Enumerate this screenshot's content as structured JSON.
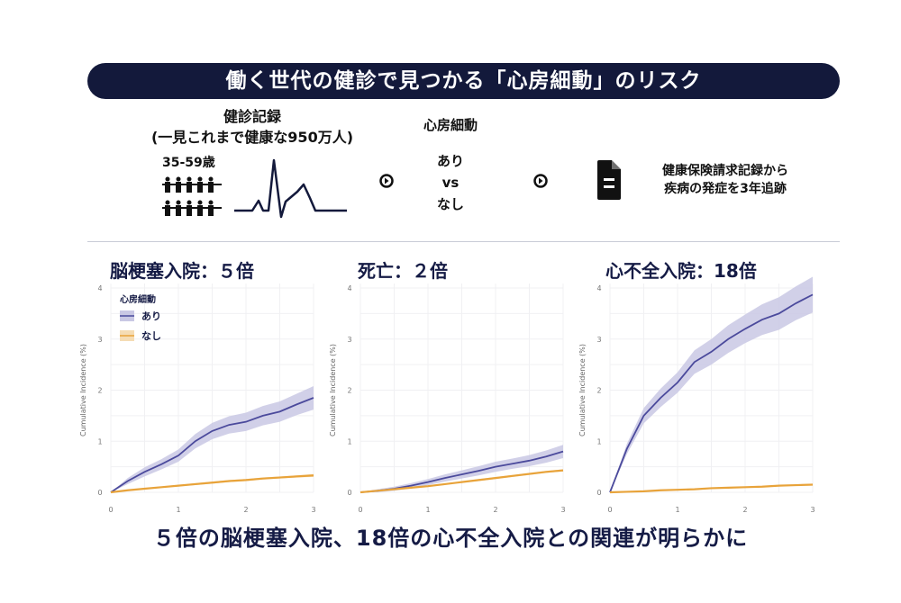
{
  "header": {
    "title": "働く世代の健診で見つかる「心房細動」のリスク"
  },
  "flow": {
    "record_title": "健診記録",
    "record_sub": "(一見これまで健康な950万人)",
    "age": "35-59歳",
    "af_title": "心房細動",
    "af_yes": "あり",
    "af_vs": "vs",
    "af_no": "なし",
    "followup_line1": "健康保険請求記録から",
    "followup_line2": "疾病の発症を3年追跡",
    "icons": [
      "people-icon",
      "ecg-icon",
      "arrow-circle-icon",
      "document-icon"
    ]
  },
  "legend": {
    "title": "心房細動",
    "items": [
      "あり",
      "なし"
    ]
  },
  "colors": {
    "navy": "#13193b",
    "ari": "#4b4a9c",
    "ari_band": "#c9c8e4",
    "nashi": "#e8a33a",
    "nashi_band": "#f5dcb4"
  },
  "chart_data": [
    {
      "type": "line",
      "title": "脳梗塞入院：５倍",
      "ylabel": "Cumulative Incidence (%)",
      "xlabel": "",
      "ylim": [
        0,
        4
      ],
      "xlim": [
        0,
        3
      ],
      "xticks": [
        "0",
        "1",
        "2",
        "3"
      ],
      "yticks": [
        "0",
        "1",
        "2",
        "3",
        "4"
      ],
      "grid": true,
      "legend": "top-left",
      "x": [
        0,
        0.25,
        0.5,
        0.75,
        1,
        1.25,
        1.5,
        1.75,
        2,
        2.25,
        2.5,
        2.75,
        3
      ],
      "series": [
        {
          "name": "あり",
          "values": [
            0,
            0.22,
            0.4,
            0.55,
            0.72,
            1.0,
            1.2,
            1.32,
            1.38,
            1.5,
            1.58,
            1.72,
            1.85
          ],
          "ci_half_width": [
            0,
            0.06,
            0.09,
            0.1,
            0.12,
            0.14,
            0.16,
            0.17,
            0.18,
            0.19,
            0.2,
            0.21,
            0.23
          ]
        },
        {
          "name": "なし",
          "values": [
            0,
            0.04,
            0.07,
            0.1,
            0.13,
            0.16,
            0.19,
            0.22,
            0.24,
            0.27,
            0.29,
            0.31,
            0.33
          ],
          "ci_half_width": [
            0,
            0.01,
            0.01,
            0.01,
            0.01,
            0.02,
            0.02,
            0.02,
            0.02,
            0.02,
            0.02,
            0.02,
            0.03
          ]
        }
      ]
    },
    {
      "type": "line",
      "title": "死亡：２倍",
      "ylabel": "Cumulative Incidence (%)",
      "xlabel": "",
      "ylim": [
        0,
        4
      ],
      "xlim": [
        0,
        3
      ],
      "xticks": [
        "0",
        "1",
        "2",
        "3"
      ],
      "yticks": [
        "0",
        "1",
        "2",
        "3",
        "4"
      ],
      "grid": true,
      "x": [
        0,
        0.25,
        0.5,
        0.75,
        1,
        1.25,
        1.5,
        1.75,
        2,
        2.25,
        2.5,
        2.75,
        3
      ],
      "series": [
        {
          "name": "あり",
          "values": [
            0,
            0.03,
            0.07,
            0.13,
            0.2,
            0.28,
            0.35,
            0.42,
            0.5,
            0.56,
            0.62,
            0.7,
            0.8
          ],
          "ci_half_width": [
            0,
            0.03,
            0.04,
            0.05,
            0.06,
            0.07,
            0.08,
            0.09,
            0.1,
            0.1,
            0.11,
            0.12,
            0.13
          ]
        },
        {
          "name": "なし",
          "values": [
            0,
            0.03,
            0.06,
            0.09,
            0.12,
            0.16,
            0.2,
            0.24,
            0.28,
            0.32,
            0.36,
            0.4,
            0.43
          ],
          "ci_half_width": [
            0,
            0.01,
            0.01,
            0.01,
            0.01,
            0.01,
            0.01,
            0.02,
            0.02,
            0.02,
            0.02,
            0.02,
            0.02
          ]
        }
      ]
    },
    {
      "type": "line",
      "title": "心不全入院：18倍",
      "ylabel": "Cumulative Incidence (%)",
      "xlabel": "",
      "ylim": [
        0,
        4
      ],
      "xlim": [
        0,
        3
      ],
      "xticks": [
        "0",
        "1",
        "2",
        "3"
      ],
      "yticks": [
        "0",
        "1",
        "2",
        "3",
        "4"
      ],
      "grid": true,
      "x": [
        0,
        0.25,
        0.5,
        0.75,
        1,
        1.25,
        1.5,
        1.75,
        2,
        2.25,
        2.5,
        2.75,
        3
      ],
      "series": [
        {
          "name": "あり",
          "values": [
            0,
            0.85,
            1.5,
            1.85,
            2.15,
            2.55,
            2.75,
            3.0,
            3.2,
            3.38,
            3.5,
            3.7,
            3.87
          ],
          "ci_half_width": [
            0,
            0.1,
            0.15,
            0.18,
            0.2,
            0.23,
            0.25,
            0.27,
            0.28,
            0.3,
            0.32,
            0.33,
            0.35
          ]
        },
        {
          "name": "なし",
          "values": [
            0,
            0.01,
            0.02,
            0.04,
            0.05,
            0.06,
            0.08,
            0.09,
            0.1,
            0.11,
            0.13,
            0.14,
            0.15
          ],
          "ci_half_width": [
            0,
            0.005,
            0.005,
            0.01,
            0.01,
            0.01,
            0.01,
            0.01,
            0.01,
            0.01,
            0.01,
            0.01,
            0.01
          ]
        }
      ]
    }
  ],
  "caption": "５倍の脳梗塞入院、18倍の心不全入院との関連が明らかに"
}
